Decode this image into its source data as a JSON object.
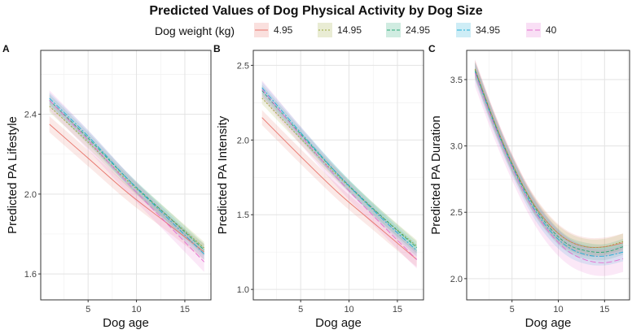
{
  "figure": {
    "title": "Predicted Values of Dog Physical Activity by Dog Size",
    "legend_title": "Dog weight (kg)"
  },
  "chart_data": [
    {
      "panel": "A",
      "type": "line",
      "title": "",
      "xlabel": "Dog age",
      "ylabel": "Predicted PA Lifestyle",
      "xlim": [
        0.1,
        17.7
      ],
      "ylim": [
        1.47,
        2.72
      ],
      "xticks": [
        5,
        10,
        15
      ],
      "yticks": [
        1.6,
        2.0,
        2.4
      ],
      "ytick_labels": [
        "1.6",
        "2.0",
        "2.4"
      ],
      "x": [
        1,
        5,
        9,
        13,
        17
      ],
      "series": [
        {
          "name": "4.95",
          "values": [
            2.35,
            2.18,
            2.01,
            1.86,
            1.71
          ],
          "ci": 0.04
        },
        {
          "name": "14.95",
          "values": [
            2.44,
            2.26,
            2.07,
            1.9,
            1.73
          ],
          "ci": 0.03
        },
        {
          "name": "24.95",
          "values": [
            2.47,
            2.28,
            2.08,
            1.9,
            1.72
          ],
          "ci": 0.03
        },
        {
          "name": "34.95",
          "values": [
            2.48,
            2.29,
            2.08,
            1.89,
            1.7
          ],
          "ci": 0.03
        },
        {
          "name": "40",
          "values": [
            2.47,
            2.27,
            2.06,
            1.86,
            1.66
          ],
          "ci": 0.05
        }
      ]
    },
    {
      "panel": "B",
      "type": "line",
      "title": "",
      "xlabel": "Dog age",
      "ylabel": "Predicted PA Intensity",
      "xlim": [
        0.1,
        17.7
      ],
      "ylim": [
        0.93,
        2.6
      ],
      "xticks": [
        5,
        10,
        15
      ],
      "yticks": [
        1.0,
        1.5,
        2.0,
        2.5
      ],
      "ytick_labels": [
        "1.0",
        "1.5",
        "2.0",
        "2.5"
      ],
      "x": [
        1,
        5,
        9,
        13,
        17
      ],
      "series": [
        {
          "name": "4.95",
          "values": [
            2.15,
            1.89,
            1.64,
            1.42,
            1.2
          ],
          "ci": 0.05
        },
        {
          "name": "14.95",
          "values": [
            2.28,
            2.01,
            1.75,
            1.51,
            1.29
          ],
          "ci": 0.04
        },
        {
          "name": "24.95",
          "values": [
            2.33,
            2.04,
            1.76,
            1.51,
            1.28
          ],
          "ci": 0.04
        },
        {
          "name": "34.95",
          "values": [
            2.35,
            2.05,
            1.76,
            1.5,
            1.26
          ],
          "ci": 0.04
        },
        {
          "name": "40",
          "values": [
            2.34,
            2.03,
            1.73,
            1.46,
            1.2
          ],
          "ci": 0.06
        }
      ]
    },
    {
      "panel": "C",
      "type": "line",
      "title": "",
      "xlabel": "Dog age",
      "ylabel": "Predicted PA Duration",
      "xlim": [
        0.1,
        17.7
      ],
      "ylim": [
        1.84,
        3.72
      ],
      "xticks": [
        5,
        10,
        15
      ],
      "yticks": [
        2.0,
        2.5,
        3.0,
        3.5
      ],
      "ytick_labels": [
        "2.0",
        "2.5",
        "3.0",
        "3.5"
      ],
      "x": [
        1,
        3,
        5,
        7,
        9,
        11,
        13,
        15,
        17
      ],
      "series": [
        {
          "name": "4.95",
          "values": [
            3.58,
            3.2,
            2.87,
            2.6,
            2.41,
            2.29,
            2.24,
            2.24,
            2.27
          ],
          "ci": 0.07
        },
        {
          "name": "14.95",
          "values": [
            3.58,
            3.2,
            2.87,
            2.6,
            2.41,
            2.29,
            2.24,
            2.24,
            2.28
          ],
          "ci": 0.06
        },
        {
          "name": "24.95",
          "values": [
            3.57,
            3.19,
            2.86,
            2.59,
            2.39,
            2.26,
            2.21,
            2.2,
            2.24
          ],
          "ci": 0.06
        },
        {
          "name": "34.95",
          "values": [
            3.56,
            3.18,
            2.85,
            2.57,
            2.37,
            2.24,
            2.18,
            2.17,
            2.2
          ],
          "ci": 0.07
        },
        {
          "name": "40",
          "values": [
            3.55,
            3.17,
            2.84,
            2.56,
            2.35,
            2.21,
            2.14,
            2.12,
            2.15
          ],
          "ci": 0.1
        }
      ]
    }
  ],
  "series_styles": [
    {
      "name": "4.95",
      "color": "#e8746b",
      "dash": "none"
    },
    {
      "name": "14.95",
      "color": "#9aa83a",
      "dash": "2,2"
    },
    {
      "name": "24.95",
      "color": "#2aa876",
      "dash": "4,2"
    },
    {
      "name": "34.95",
      "color": "#1eaed8",
      "dash": "6,2,2,2"
    },
    {
      "name": "40",
      "color": "#e46fd0",
      "dash": "7,3"
    }
  ]
}
